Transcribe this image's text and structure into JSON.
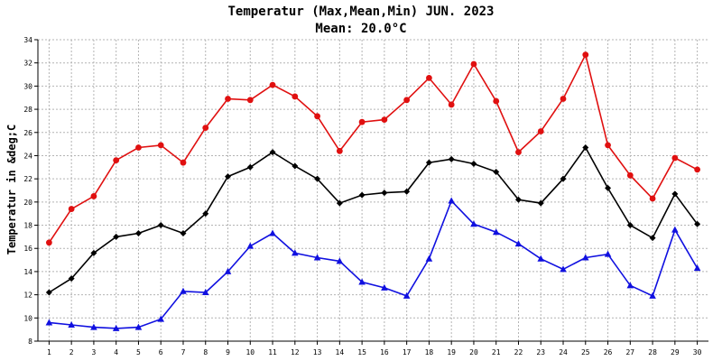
{
  "colors": {
    "max": "#e01010",
    "mean": "#000000",
    "min": "#1010e0",
    "grid": "#b4b4b4"
  },
  "chart_data": {
    "type": "line",
    "title": "Temperatur (Max,Mean,Min) JUN. 2023",
    "subtitle": "Mean: 20.0°C",
    "xlabel": "",
    "ylabel": "Temperatur in &deg;C",
    "ylim": [
      8,
      34
    ],
    "yticks": [
      "8",
      "10",
      "12",
      "14",
      "16",
      "18",
      "20",
      "22",
      "24",
      "26",
      "28",
      "30",
      "32",
      "34"
    ],
    "xticks": [
      "1",
      "2",
      "3",
      "4",
      "5",
      "6",
      "7",
      "8",
      "9",
      "10",
      "11",
      "12",
      "13",
      "14",
      "15",
      "16",
      "17",
      "18",
      "19",
      "20",
      "21",
      "22",
      "23",
      "24",
      "25",
      "26",
      "27",
      "28",
      "29",
      "30"
    ],
    "x": [
      1,
      2,
      3,
      4,
      5,
      6,
      7,
      8,
      9,
      10,
      11,
      12,
      13,
      14,
      15,
      16,
      17,
      18,
      19,
      20,
      21,
      22,
      23,
      24,
      25,
      26,
      27,
      28,
      29,
      30
    ],
    "grid": true,
    "series": [
      {
        "key": "max",
        "marker": "circle",
        "values": [
          16.5,
          19.4,
          20.5,
          23.6,
          24.7,
          24.9,
          23.4,
          26.4,
          28.9,
          28.8,
          30.1,
          29.1,
          27.4,
          24.4,
          26.9,
          27.1,
          28.8,
          30.7,
          28.4,
          31.9,
          28.7,
          24.3,
          26.1,
          28.9,
          32.7,
          24.9,
          22.3,
          20.3,
          23.8,
          22.8
        ]
      },
      {
        "key": "mean",
        "marker": "diamond",
        "values": [
          12.2,
          13.4,
          15.6,
          17.0,
          17.3,
          18.0,
          17.3,
          19.0,
          22.2,
          23.0,
          24.3,
          23.1,
          22.0,
          19.9,
          20.6,
          20.8,
          20.9,
          23.4,
          23.7,
          23.3,
          22.6,
          20.2,
          19.9,
          22.0,
          24.7,
          21.2,
          18.0,
          16.9,
          20.7,
          18.1
        ]
      },
      {
        "key": "min",
        "marker": "triangle",
        "values": [
          9.6,
          9.4,
          9.2,
          9.1,
          9.2,
          9.9,
          12.3,
          12.2,
          14.0,
          16.2,
          17.3,
          15.6,
          15.2,
          14.9,
          13.1,
          12.6,
          11.9,
          15.1,
          20.1,
          18.1,
          17.4,
          16.4,
          15.1,
          14.2,
          15.2,
          15.5,
          12.8,
          11.9,
          17.6,
          14.3
        ]
      }
    ]
  }
}
